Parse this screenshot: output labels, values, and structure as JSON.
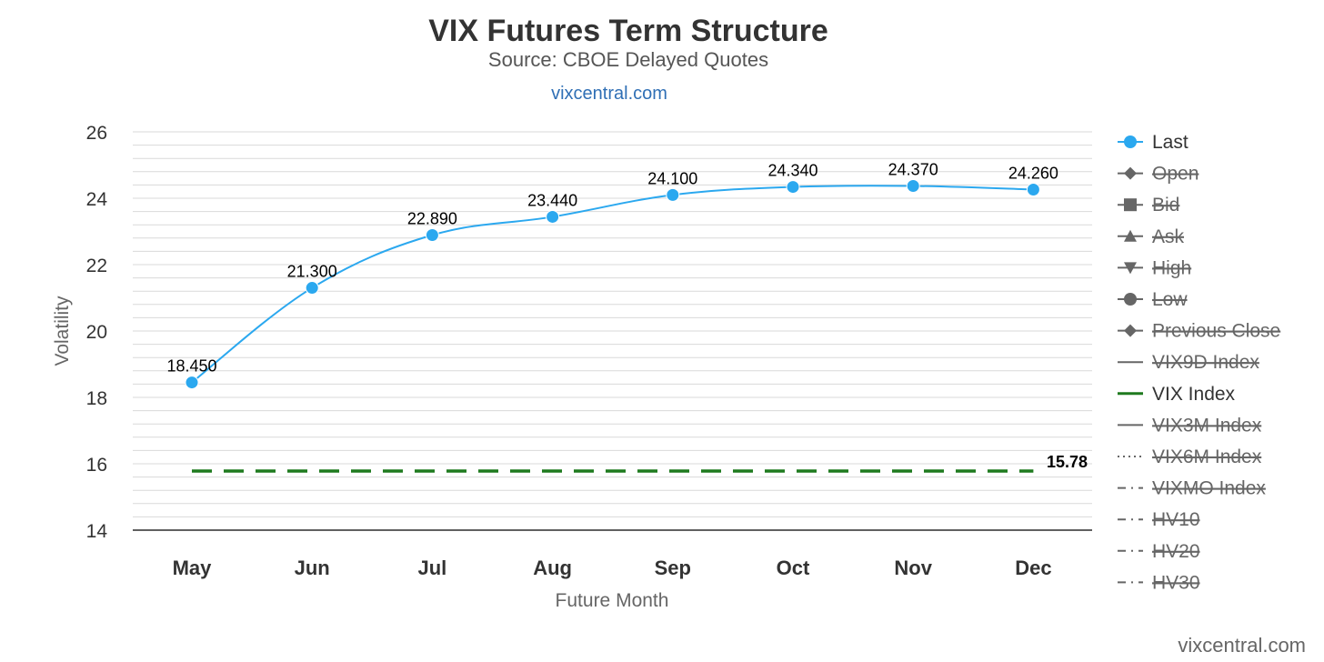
{
  "chart_data": {
    "type": "line",
    "title": "VIX Futures Term Structure",
    "subtitle": "Source: CBOE Delayed Quotes",
    "link_text": "vixcentral.com",
    "credit_text": "vixcentral.com",
    "xlabel": "Future Month",
    "ylabel": "Volatility",
    "categories": [
      "May",
      "Jun",
      "Jul",
      "Aug",
      "Sep",
      "Oct",
      "Nov",
      "Dec"
    ],
    "ylim": [
      14,
      26
    ],
    "yticks": [
      14,
      16,
      18,
      20,
      22,
      24,
      26
    ],
    "minor_grid_step": 0.4,
    "grid": true,
    "legend_position": "right",
    "series": [
      {
        "name": "Last",
        "color": "#2ba8ef",
        "marker": "circle",
        "values": [
          18.45,
          21.3,
          22.89,
          23.44,
          24.1,
          24.34,
          24.37,
          24.26
        ],
        "labels": [
          "18.450",
          "21.300",
          "22.890",
          "23.440",
          "24.100",
          "24.340",
          "24.370",
          "24.260"
        ]
      },
      {
        "name": "VIX Index",
        "color": "#1e7a1e",
        "style": "dashed",
        "value": 15.78,
        "label": "15.78"
      }
    ],
    "legend": [
      {
        "name": "Last",
        "symbol": "circle",
        "active": true
      },
      {
        "name": "Open",
        "symbol": "diamond",
        "active": false
      },
      {
        "name": "Bid",
        "symbol": "square",
        "active": false
      },
      {
        "name": "Ask",
        "symbol": "triangle-up",
        "active": false
      },
      {
        "name": "High",
        "symbol": "triangle-down",
        "active": false
      },
      {
        "name": "Low",
        "symbol": "circle",
        "active": false
      },
      {
        "name": "Previous Close",
        "symbol": "diamond",
        "active": false
      },
      {
        "name": "VIX9D Index",
        "symbol": "line",
        "active": false
      },
      {
        "name": "VIX Index",
        "symbol": "line",
        "active": true
      },
      {
        "name": "VIX3M Index",
        "symbol": "line",
        "active": false
      },
      {
        "name": "VIX6M Index",
        "symbol": "dotted",
        "active": false
      },
      {
        "name": "VIXMO Index",
        "symbol": "dashdot",
        "active": false
      },
      {
        "name": "HV10",
        "symbol": "dashdot",
        "active": false
      },
      {
        "name": "HV20",
        "symbol": "dashdot",
        "active": false
      },
      {
        "name": "HV30",
        "symbol": "dashdot",
        "active": false
      }
    ],
    "colors": {
      "last": "#2ba8ef",
      "vix": "#1e7a1e",
      "inactive": "#666666",
      "active_text": "#333333",
      "grid": "#d9d9d9",
      "axis": "#000000"
    }
  }
}
